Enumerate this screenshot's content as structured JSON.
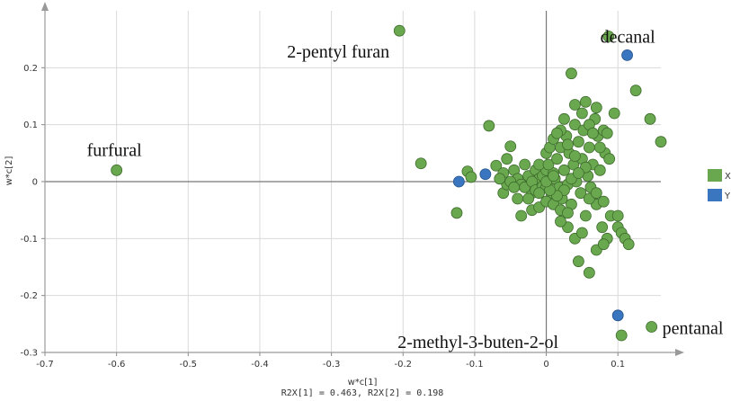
{
  "chart_data": {
    "type": "scatter",
    "xlabel": "w*c[1]",
    "ylabel": "w*c[2]",
    "xlim": [
      -0.7,
      0.16
    ],
    "ylim": [
      -0.3,
      0.3
    ],
    "x_ticks": [
      -0.7,
      -0.6,
      -0.5,
      -0.4,
      -0.3,
      -0.2,
      -0.1,
      0,
      0.1
    ],
    "x_tick_labels": [
      "-0.7",
      "-0.6",
      "-0.5",
      "-0.4",
      "-0.3",
      "-0.2",
      "-0.1",
      "0",
      "0.1"
    ],
    "y_ticks": [
      -0.3,
      -0.2,
      -0.1,
      0,
      0.1,
      0.2
    ],
    "y_tick_labels": [
      "-0.3",
      "-0.2",
      "-0.1",
      "0",
      "0.1",
      "0.2"
    ],
    "grid": true,
    "footer": "R2X[1] = 0.463, R2X[2] = 0.198",
    "legend_position": "right",
    "series": [
      {
        "name": "X",
        "color": "#6aa84f",
        "points": [
          [
            -0.6,
            0.02
          ],
          [
            -0.205,
            0.265
          ],
          [
            0.087,
            0.255
          ],
          [
            -0.175,
            0.032
          ],
          [
            -0.125,
            -0.055
          ],
          [
            -0.11,
            0.018
          ],
          [
            -0.105,
            0.008
          ],
          [
            -0.08,
            0.098
          ],
          [
            -0.07,
            0.028
          ],
          [
            -0.06,
            0.015
          ],
          [
            -0.055,
            0.04
          ],
          [
            -0.05,
            0.062
          ],
          [
            -0.045,
            0.02
          ],
          [
            -0.04,
            0.005
          ],
          [
            -0.035,
            -0.005
          ],
          [
            -0.03,
            0.03
          ],
          [
            -0.025,
            0.01
          ],
          [
            -0.02,
            -0.02
          ],
          [
            -0.015,
            0.02
          ],
          [
            -0.01,
            0.005
          ],
          [
            -0.005,
            0.01
          ],
          [
            0.0,
            0.02
          ],
          [
            0.005,
            0.002
          ],
          [
            0.01,
            0.015
          ],
          [
            -0.03,
            -0.01
          ],
          [
            -0.025,
            -0.03
          ],
          [
            -0.02,
            0.0
          ],
          [
            -0.015,
            -0.015
          ],
          [
            -0.01,
            0.03
          ],
          [
            -0.005,
            -0.008
          ],
          [
            0.0,
            -0.01
          ],
          [
            0.003,
            0.03
          ],
          [
            0.008,
            -0.02
          ],
          [
            0.012,
            0.005
          ],
          [
            0.015,
            0.04
          ],
          [
            0.018,
            -0.01
          ],
          [
            0.02,
            0.06
          ],
          [
            0.022,
            -0.03
          ],
          [
            0.025,
            0.02
          ],
          [
            0.028,
            0.08
          ],
          [
            0.03,
            -0.005
          ],
          [
            0.032,
            0.05
          ],
          [
            0.035,
            -0.04
          ],
          [
            0.038,
            0.03
          ],
          [
            0.04,
            0.1
          ],
          [
            0.042,
            0.0
          ],
          [
            0.045,
            0.07
          ],
          [
            0.048,
            -0.02
          ],
          [
            0.05,
            0.04
          ],
          [
            0.052,
            0.09
          ],
          [
            0.055,
            -0.06
          ],
          [
            0.058,
            0.01
          ],
          [
            0.06,
            0.06
          ],
          [
            0.062,
            -0.01
          ],
          [
            0.065,
            0.03
          ],
          [
            0.068,
            0.11
          ],
          [
            0.07,
            -0.04
          ],
          [
            0.072,
            0.08
          ],
          [
            0.075,
            0.02
          ],
          [
            0.078,
            -0.08
          ],
          [
            0.08,
            0.09
          ],
          [
            0.082,
            0.05
          ],
          [
            0.085,
            -0.1
          ],
          [
            0.088,
            0.04
          ],
          [
            0.09,
            -0.06
          ],
          [
            0.095,
            0.12
          ],
          [
            0.1,
            -0.08
          ],
          [
            0.105,
            -0.09
          ],
          [
            0.11,
            -0.1
          ],
          [
            0.115,
            -0.11
          ],
          [
            0.125,
            0.16
          ],
          [
            0.145,
            0.11
          ],
          [
            0.16,
            0.07
          ],
          [
            0.035,
            0.19
          ],
          [
            0.055,
            0.14
          ],
          [
            0.07,
            0.13
          ],
          [
            0.085,
            0.085
          ],
          [
            -0.04,
            -0.03
          ],
          [
            -0.035,
            -0.06
          ],
          [
            -0.02,
            -0.05
          ],
          [
            -0.01,
            -0.045
          ],
          [
            0.0,
            -0.035
          ],
          [
            0.01,
            -0.04
          ],
          [
            0.02,
            -0.05
          ],
          [
            0.03,
            -0.055
          ],
          [
            0.04,
            -0.1
          ],
          [
            0.045,
            -0.14
          ],
          [
            0.06,
            -0.16
          ],
          [
            0.07,
            -0.12
          ],
          [
            0.08,
            -0.11
          ],
          [
            0.05,
            -0.09
          ],
          [
            0.03,
            -0.08
          ],
          [
            0.02,
            -0.07
          ],
          [
            -0.06,
            -0.02
          ],
          [
            -0.055,
            -0.005
          ],
          [
            -0.05,
            0.0
          ],
          [
            -0.045,
            -0.01
          ],
          [
            -0.065,
            0.005
          ],
          [
            0.0,
            0.05
          ],
          [
            0.005,
            0.06
          ],
          [
            0.01,
            0.075
          ],
          [
            0.02,
            0.09
          ],
          [
            0.025,
            0.11
          ],
          [
            0.04,
            0.135
          ],
          [
            0.05,
            0.12
          ],
          [
            0.06,
            0.1
          ],
          [
            0.065,
            0.085
          ],
          [
            0.075,
            0.06
          ],
          [
            0.03,
            0.065
          ],
          [
            0.015,
            0.085
          ],
          [
            0.04,
            0.045
          ],
          [
            0.055,
            0.025
          ],
          [
            0.06,
            -0.03
          ],
          [
            0.07,
            -0.02
          ],
          [
            0.08,
            -0.035
          ],
          [
            0.1,
            -0.06
          ],
          [
            0.035,
            0.005
          ],
          [
            0.045,
            0.015
          ],
          [
            0.025,
            -0.015
          ],
          [
            0.015,
            -0.025
          ],
          [
            0.005,
            -0.015
          ],
          [
            -0.01,
            -0.02
          ],
          [
            0.0,
            0.0
          ],
          [
            0.01,
            0.01
          ],
          [
            0.105,
            -0.27
          ],
          [
            0.147,
            -0.255
          ]
        ]
      },
      {
        "name": "Y",
        "color": "#3a76bf",
        "points": [
          [
            -0.122,
            0.0
          ],
          [
            -0.085,
            0.013
          ],
          [
            0.113,
            0.222
          ],
          [
            0.1,
            -0.235
          ]
        ]
      }
    ],
    "annotations": [
      {
        "text": "furfural",
        "x": -0.6,
        "y": 0.02
      },
      {
        "text": "2-pentyl furan",
        "x": -0.205,
        "y": 0.265
      },
      {
        "text": "decanal",
        "x": 0.113,
        "y": 0.222
      },
      {
        "text": "pentanal",
        "x": 0.147,
        "y": -0.255
      },
      {
        "text": "2-methyl-3-buten-2-ol",
        "x": 0.1,
        "y": -0.235
      }
    ]
  }
}
